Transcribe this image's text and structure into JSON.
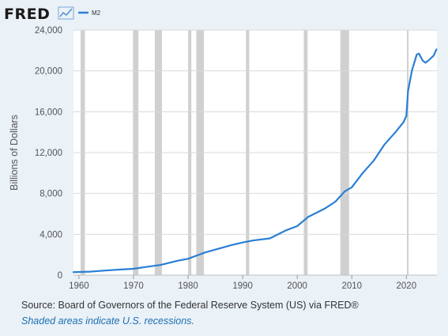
{
  "header": {
    "brand": "FRED",
    "logo_icon": "fred-chart-logo-icon"
  },
  "footer": {
    "source": "Source: Board of Governors of the Federal Reserve System (US) via FRED®",
    "note": "Shaded areas indicate U.S. recessions."
  },
  "colors": {
    "background": "#eaf1f7",
    "plot_background": "#ffffff",
    "line": "#2a7fd4",
    "recession": "#d0d0d0",
    "grid": "#d9d9d9",
    "link": "#1a6fb3"
  },
  "chart_data": {
    "type": "line",
    "title": "",
    "xlabel": "",
    "ylabel": "Billions of Dollars",
    "xlim": [
      1959,
      2025.6
    ],
    "ylim": [
      0,
      24000
    ],
    "grid": "horizontal",
    "legend": "top-left",
    "yticks": [
      0,
      4000,
      8000,
      12000,
      16000,
      20000,
      24000
    ],
    "ytick_labels": [
      "0",
      "4,000",
      "8,000",
      "12,000",
      "16,000",
      "20,000",
      "24,000"
    ],
    "xticks": [
      1960,
      1970,
      1980,
      1990,
      2000,
      2010,
      2020
    ],
    "xtick_labels": [
      "1960",
      "1970",
      "1980",
      "1990",
      "2000",
      "2010",
      "2020"
    ],
    "recessions": [
      [
        1960.3,
        1961.1
      ],
      [
        1969.9,
        1970.9
      ],
      [
        1973.9,
        1975.2
      ],
      [
        1980.0,
        1980.6
      ],
      [
        1981.5,
        1982.9
      ],
      [
        1990.6,
        1991.2
      ],
      [
        2001.2,
        2001.9
      ],
      [
        2007.9,
        2009.5
      ],
      [
        2020.1,
        2020.4
      ]
    ],
    "series": [
      {
        "name": "M2",
        "x": [
          1959,
          1962,
          1965,
          1968,
          1970,
          1972,
          1975,
          1978,
          1980,
          1983,
          1985,
          1988,
          1990,
          1992,
          1995,
          1998,
          2000,
          2002,
          2005,
          2007,
          2008.7,
          2010,
          2012,
          2014,
          2016,
          2018,
          2019.5,
          2020.0,
          2020.3,
          2021.0,
          2021.9,
          2022.3,
          2023.0,
          2023.5,
          2024.0,
          2025.0,
          2025.5
        ],
        "y": [
          290,
          340,
          460,
          560,
          620,
          780,
          1000,
          1400,
          1600,
          2200,
          2500,
          2950,
          3200,
          3400,
          3600,
          4400,
          4800,
          5700,
          6500,
          7200,
          8200,
          8600,
          10000,
          11200,
          12800,
          14000,
          15000,
          15600,
          18000,
          20000,
          21600,
          21700,
          21000,
          20800,
          21000,
          21500,
          22100
        ]
      }
    ]
  }
}
